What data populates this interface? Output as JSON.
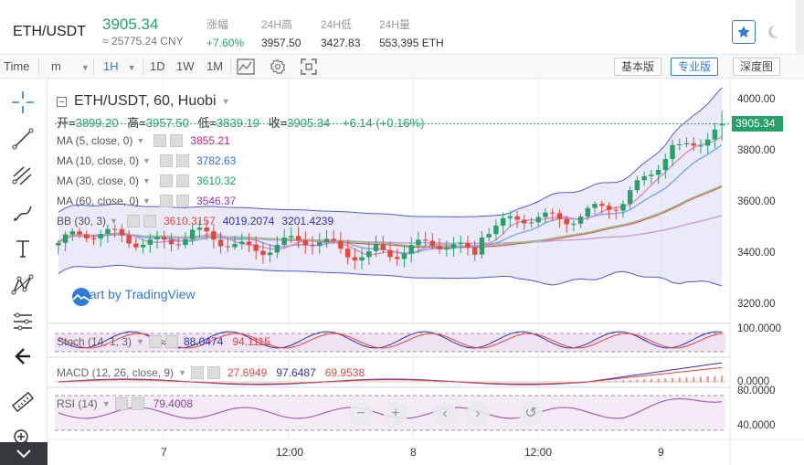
{
  "header": {
    "pair": "ETH/USDT",
    "price": "3905.34",
    "cny": "≈ 25775.24 CNY",
    "stats": [
      {
        "label": "涨幅",
        "value": "+7.60%"
      },
      {
        "label": "24H高",
        "value": "3957.50"
      },
      {
        "label": "24H低",
        "value": "3427.83"
      },
      {
        "label": "24H量",
        "value": "553,395 ETH"
      }
    ]
  },
  "toolbar": {
    "time_label": "Time",
    "m_dropdown": "m",
    "intervals": [
      "1H",
      "1D",
      "1W",
      "1M"
    ],
    "active_interval": "1H",
    "views": [
      "基本版",
      "专业版",
      "深度图"
    ],
    "active_view": "专业版"
  },
  "chart": {
    "title": "ETH/USDT, 60, Huobi",
    "ohlc": {
      "open_label": "开=",
      "open": "3899.20",
      "high_label": "高=",
      "high": "3957.50",
      "low_label": "低=",
      "low": "3839.19",
      "close_label": "收=",
      "close": "3905.34",
      "change": "+6.14 (+0.16%)"
    },
    "legend": [
      {
        "name": "MA (5, close, 0)",
        "value": "3855.21",
        "color": "#c0267a"
      },
      {
        "name": "MA (10, close, 0)",
        "value": "3782.63",
        "color": "#2f6ad9"
      },
      {
        "name": "MA (30, close, 0)",
        "value": "3610.32",
        "color": "#26a269"
      },
      {
        "name": "MA (60, close, 0)",
        "value": "3546.37",
        "color": "#8e3aa8"
      }
    ],
    "bb": {
      "name": "BB (30, 3)",
      "values": [
        "3610.3157",
        "4019.2074",
        "3201.4239"
      ],
      "colors": [
        "#e8453c",
        "#2f2fc8",
        "#2f2fc8"
      ]
    },
    "watermark": "Chart by TradingView",
    "last_price_tag": "3905.34",
    "y_labels": [
      "4000.00",
      "3800.00",
      "3600.00",
      "3400.00",
      "3200.00"
    ],
    "x_labels": [
      "7",
      "12:00",
      "8",
      "12:00",
      "9"
    ],
    "stoch": {
      "name": "Stoch (14, 1, 3)",
      "values": [
        "88.0474",
        "94.1115"
      ],
      "colors": [
        "#2f2fc8",
        "#e8453c"
      ],
      "y_label": "100.0000"
    },
    "macd": {
      "name": "MACD (12, 26, close, 9)",
      "values": [
        "27.6949",
        "97.6487",
        "69.9538"
      ],
      "colors": [
        "#e8453c",
        "#2f2fc8",
        "#e8453c"
      ],
      "y_label": "0.0000"
    },
    "rsi": {
      "name": "RSI (14)",
      "value": "79.4008",
      "color": "#8e3aa8",
      "y_labels": [
        "80.0000",
        "40.0000"
      ]
    }
  }
}
